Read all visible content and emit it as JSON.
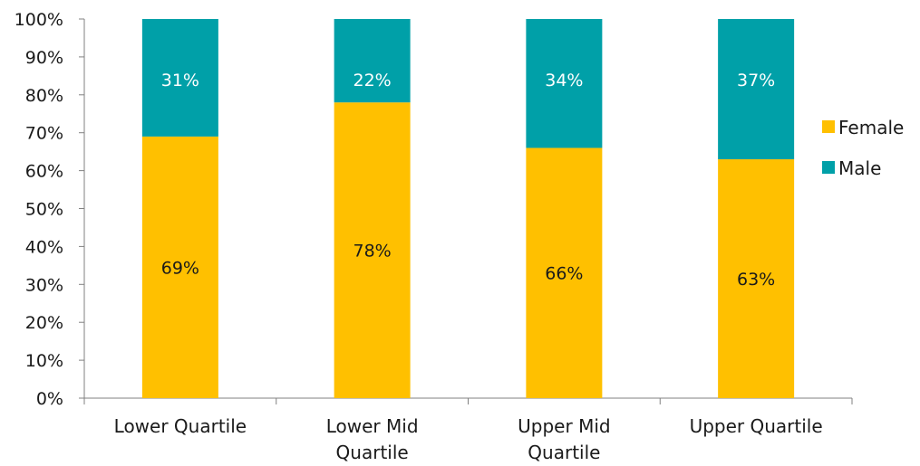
{
  "chart_data": {
    "type": "bar",
    "stacked": true,
    "percent_stacked": true,
    "categories": [
      "Lower Quartile",
      "Lower Mid Quartile",
      "Upper Mid Quartile",
      "Upper Quartile"
    ],
    "category_lines": [
      [
        "Lower Quartile"
      ],
      [
        "Lower Mid",
        "Quartile"
      ],
      [
        "Upper Mid",
        "Quartile"
      ],
      [
        "Upper Quartile"
      ]
    ],
    "series": [
      {
        "name": "Female",
        "values": [
          69,
          78,
          66,
          63
        ],
        "labels": [
          "69%",
          "78%",
          "66%",
          "63%"
        ],
        "color": "#FFC000"
      },
      {
        "name": "Male",
        "values": [
          31,
          22,
          34,
          37
        ],
        "labels": [
          "31%",
          "22%",
          "34%",
          "37%"
        ],
        "color": "#00A0A8"
      }
    ],
    "ylim": [
      0,
      100
    ],
    "y_ticks": [
      0,
      10,
      20,
      30,
      40,
      50,
      60,
      70,
      80,
      90,
      100
    ],
    "y_tick_labels": [
      "0%",
      "10%",
      "20%",
      "30%",
      "40%",
      "50%",
      "60%",
      "70%",
      "80%",
      "90%",
      "100%"
    ],
    "title": "",
    "xlabel": "",
    "ylabel": "",
    "grid": false,
    "legend_position": "right"
  }
}
